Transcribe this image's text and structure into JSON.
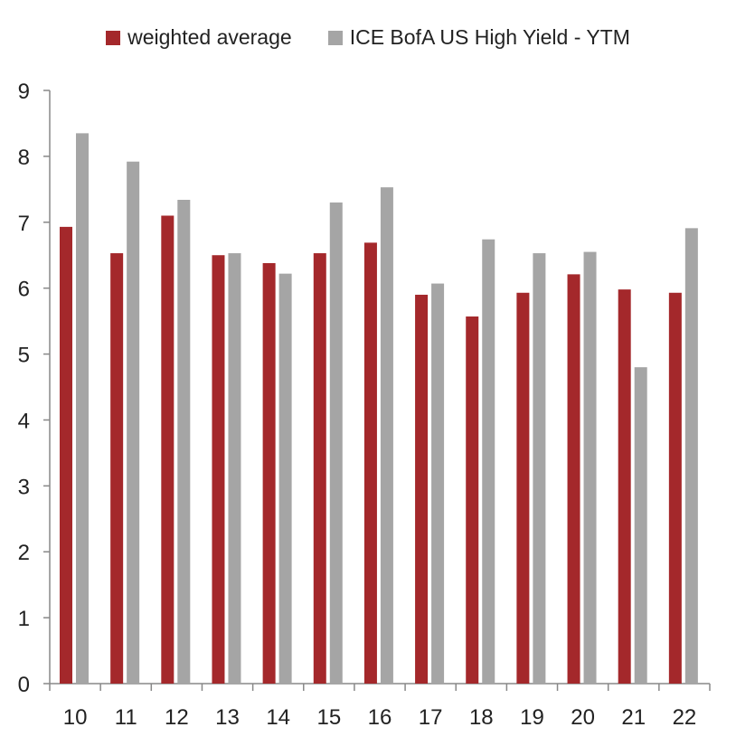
{
  "chart_data": {
    "type": "bar",
    "categories": [
      "10",
      "11",
      "12",
      "13",
      "14",
      "15",
      "16",
      "17",
      "18",
      "19",
      "20",
      "21",
      "22"
    ],
    "series": [
      {
        "name": "weighted average",
        "color": "#a4282b",
        "values": [
          6.93,
          6.53,
          7.1,
          6.5,
          6.38,
          6.53,
          6.69,
          5.9,
          5.57,
          5.93,
          6.21,
          5.98,
          5.93
        ]
      },
      {
        "name": "ICE BofA US High Yield - YTM",
        "color": "#a5a5a5",
        "values": [
          8.35,
          7.92,
          7.34,
          6.53,
          6.22,
          7.3,
          7.53,
          6.07,
          6.74,
          6.53,
          6.55,
          4.8,
          6.91
        ]
      }
    ],
    "yticks": [
      "0",
      "1",
      "2",
      "3",
      "4",
      "5",
      "6",
      "7",
      "8",
      "9"
    ],
    "ylim": [
      0,
      9
    ],
    "legend_position": "top-center",
    "grid": false
  }
}
